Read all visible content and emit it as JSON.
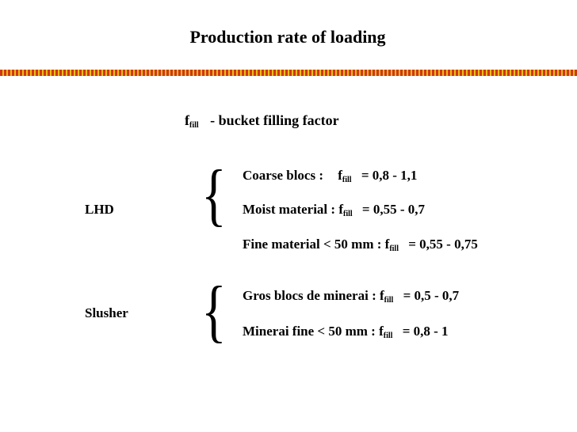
{
  "slide": {
    "title": "Production rate of loading",
    "definition": {
      "symbol": "f",
      "sub": "fill",
      "text": "- bucket filling factor"
    },
    "groups": [
      {
        "label": "LHD",
        "items": [
          {
            "pre": "Coarse blocs :",
            "symbol": "f",
            "sub": "fill",
            "value": "= 0,8 - 1,1"
          },
          {
            "pre": "Moist material :",
            "symbol": "f",
            "sub": "fill",
            "value": "= 0,55 - 0,7"
          },
          {
            "pre": "Fine material < 50 mm :",
            "symbol": "f",
            "sub": "fill",
            "value": "= 0,55 - 0,75"
          }
        ]
      },
      {
        "label": "Slusher",
        "items": [
          {
            "pre": "Gros blocs de minerai :",
            "symbol": "f",
            "sub": "fill",
            "value": "= 0,5 - 0,7"
          },
          {
            "pre": "Minerai fine < 50 mm :",
            "symbol": "f",
            "sub": "fill",
            "value": "= 0,8 - 1"
          }
        ]
      }
    ],
    "brace_glyph": "{",
    "colors": {
      "rule_red": "#cc2200",
      "rule_gold": "#e6b800"
    }
  }
}
